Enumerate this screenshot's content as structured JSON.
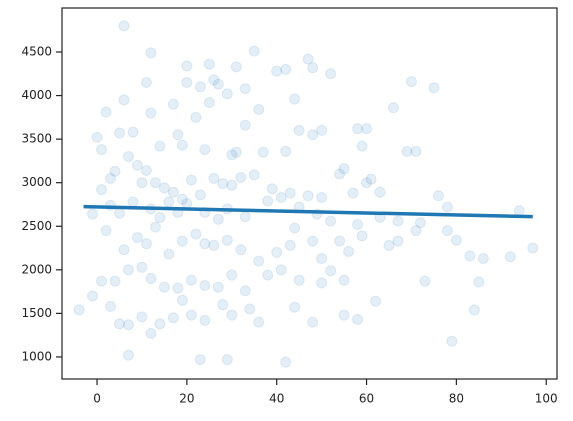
{
  "chart_data": {
    "type": "scatter",
    "color": "#1f77b4",
    "opacity": 0.12,
    "points": [
      [
        6,
        4800
      ],
      [
        12,
        4490
      ],
      [
        20,
        4340
      ],
      [
        25,
        4360
      ],
      [
        26,
        4180
      ],
      [
        31,
        4330
      ],
      [
        35,
        4510
      ],
      [
        47,
        4420
      ],
      [
        48,
        4320
      ],
      [
        52,
        4250
      ],
      [
        70,
        4160
      ],
      [
        75,
        4090
      ],
      [
        20,
        4150
      ],
      [
        23,
        4100
      ],
      [
        27,
        4130
      ],
      [
        29,
        4020
      ],
      [
        33,
        4080
      ],
      [
        40,
        4280
      ],
      [
        42,
        4300
      ],
      [
        11,
        4150
      ],
      [
        2,
        3810
      ],
      [
        6,
        3950
      ],
      [
        12,
        3800
      ],
      [
        17,
        3900
      ],
      [
        22,
        3750
      ],
      [
        25,
        3920
      ],
      [
        36,
        3840
      ],
      [
        44,
        3960
      ],
      [
        50,
        3600
      ],
      [
        58,
        3620
      ],
      [
        60,
        3620
      ],
      [
        66,
        3860
      ],
      [
        71,
        3360
      ],
      [
        69,
        3360
      ],
      [
        5,
        3570
      ],
      [
        8,
        3580
      ],
      [
        14,
        3420
      ],
      [
        18,
        3550
      ],
      [
        19,
        3430
      ],
      [
        24,
        3380
      ],
      [
        31,
        3350
      ],
      [
        30,
        3320
      ],
      [
        33,
        3660
      ],
      [
        42,
        3360
      ],
      [
        45,
        3600
      ],
      [
        48,
        3550
      ],
      [
        55,
        3160
      ],
      [
        59,
        3420
      ],
      [
        61,
        3040
      ],
      [
        0,
        3520
      ],
      [
        1,
        3380
      ],
      [
        3,
        3050
      ],
      [
        4,
        3130
      ],
      [
        7,
        3300
      ],
      [
        9,
        3200
      ],
      [
        10,
        3000
      ],
      [
        11,
        3140
      ],
      [
        13,
        3000
      ],
      [
        15,
        2940
      ],
      [
        17,
        2890
      ],
      [
        19,
        2810
      ],
      [
        21,
        3030
      ],
      [
        23,
        2860
      ],
      [
        26,
        3050
      ],
      [
        28,
        2990
      ],
      [
        30,
        2970
      ],
      [
        32,
        3060
      ],
      [
        35,
        3090
      ],
      [
        37,
        3350
      ],
      [
        39,
        2930
      ],
      [
        41,
        2830
      ],
      [
        43,
        2880
      ],
      [
        47,
        2850
      ],
      [
        50,
        2830
      ],
      [
        54,
        3100
      ],
      [
        57,
        2880
      ],
      [
        60,
        3000
      ],
      [
        63,
        2890
      ],
      [
        76,
        2850
      ],
      [
        1,
        2920
      ],
      [
        3,
        2740
      ],
      [
        5,
        2650
      ],
      [
        8,
        2780
      ],
      [
        12,
        2700
      ],
      [
        14,
        2600
      ],
      [
        16,
        2780
      ],
      [
        18,
        2660
      ],
      [
        20,
        2760
      ],
      [
        24,
        2660
      ],
      [
        27,
        2580
      ],
      [
        29,
        2700
      ],
      [
        33,
        2610
      ],
      [
        38,
        2790
      ],
      [
        45,
        2720
      ],
      [
        49,
        2640
      ],
      [
        52,
        2560
      ],
      [
        58,
        2520
      ],
      [
        63,
        2600
      ],
      [
        67,
        2560
      ],
      [
        72,
        2540
      ],
      [
        78,
        2720
      ],
      [
        -1,
        2640
      ],
      [
        2,
        2450
      ],
      [
        6,
        2230
      ],
      [
        9,
        2370
      ],
      [
        11,
        2300
      ],
      [
        13,
        2490
      ],
      [
        16,
        2180
      ],
      [
        19,
        2330
      ],
      [
        22,
        2410
      ],
      [
        24,
        2300
      ],
      [
        26,
        2280
      ],
      [
        29,
        2340
      ],
      [
        32,
        2230
      ],
      [
        36,
        2100
      ],
      [
        40,
        2200
      ],
      [
        43,
        2280
      ],
      [
        44,
        2480
      ],
      [
        48,
        2330
      ],
      [
        50,
        2130
      ],
      [
        54,
        2330
      ],
      [
        56,
        2210
      ],
      [
        59,
        2390
      ],
      [
        65,
        2280
      ],
      [
        67,
        2330
      ],
      [
        71,
        2450
      ],
      [
        78,
        2450
      ],
      [
        80,
        2340
      ],
      [
        83,
        2160
      ],
      [
        86,
        2130
      ],
      [
        92,
        2150
      ],
      [
        97,
        2250
      ],
      [
        94,
        2680
      ],
      [
        1,
        1870
      ],
      [
        4,
        1870
      ],
      [
        7,
        2000
      ],
      [
        10,
        2030
      ],
      [
        12,
        1900
      ],
      [
        15,
        1800
      ],
      [
        18,
        1790
      ],
      [
        21,
        1880
      ],
      [
        24,
        1820
      ],
      [
        27,
        1800
      ],
      [
        30,
        1940
      ],
      [
        33,
        1760
      ],
      [
        38,
        1940
      ],
      [
        41,
        2000
      ],
      [
        45,
        1880
      ],
      [
        50,
        1850
      ],
      [
        52,
        1990
      ],
      [
        55,
        1880
      ],
      [
        62,
        1640
      ],
      [
        73,
        1870
      ],
      [
        85,
        1860
      ],
      [
        -4,
        1540
      ],
      [
        -1,
        1700
      ],
      [
        3,
        1580
      ],
      [
        5,
        1380
      ],
      [
        7,
        1370
      ],
      [
        10,
        1460
      ],
      [
        14,
        1380
      ],
      [
        17,
        1450
      ],
      [
        19,
        1650
      ],
      [
        21,
        1480
      ],
      [
        24,
        1420
      ],
      [
        28,
        1600
      ],
      [
        30,
        1480
      ],
      [
        34,
        1550
      ],
      [
        36,
        1400
      ],
      [
        44,
        1570
      ],
      [
        48,
        1400
      ],
      [
        55,
        1480
      ],
      [
        58,
        1430
      ],
      [
        84,
        1540
      ],
      [
        7,
        1020
      ],
      [
        12,
        1270
      ],
      [
        23,
        970
      ],
      [
        29,
        970
      ],
      [
        42,
        940
      ],
      [
        79,
        1180
      ]
    ],
    "fit_line": {
      "x": [
        -3,
        97
      ],
      "y": [
        2725,
        2610
      ],
      "color": "#1f77b4"
    },
    "xlim": [
      -7.8,
      102.4
    ],
    "ylim": [
      747,
      5005
    ],
    "xticks": [
      0,
      20,
      40,
      60,
      80,
      100
    ],
    "yticks": [
      1000,
      1500,
      2000,
      2500,
      3000,
      3500,
      4000,
      4500
    ]
  }
}
